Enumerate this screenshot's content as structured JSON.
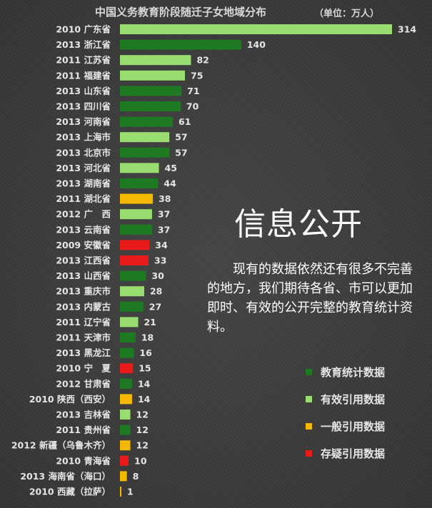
{
  "header": {
    "title": "中国义务教育阶段随迁子女地域分布",
    "unit": "（单位：万人）"
  },
  "slide": {
    "heading": "信息公开",
    "body": "现有的数据依然还有很多不完善的地方，我们期待各省、市可以更加即时、有效的公开完整的教育统计资料。"
  },
  "colors": {
    "edu_stats": "#1e7a22",
    "valid_cite": "#99dd70",
    "general_cite": "#f5b800",
    "doubtful_cite": "#e81a1a"
  },
  "legend": [
    {
      "key": "edu_stats",
      "label": "教育统计数据",
      "color": "#1e7a22"
    },
    {
      "key": "valid_cite",
      "label": "有效引用数据",
      "color": "#99dd70"
    },
    {
      "key": "general_cite",
      "label": "一般引用数据",
      "color": "#f5b800"
    },
    {
      "key": "doubtful_cite",
      "label": "存疑引用数据",
      "color": "#e81a1a"
    }
  ],
  "chart_data": {
    "type": "bar",
    "orientation": "horizontal",
    "title": "中国义务教育阶段随迁子女地域分布",
    "unit": "（单位：万人）",
    "categories": [
      "2010 广东省",
      "2013 浙江省",
      "2011 江苏省",
      "2011 福建省",
      "2013 山东省",
      "2013 四川省",
      "2013 河南省",
      "2013 上海市",
      "2013 北京市",
      "2013 河北省",
      "2013 湖南省",
      "2011 湖北省",
      "2012 广　西",
      "2013 云南省",
      "2009 安徽省",
      "2013 江西省",
      "2013 山西省",
      "2013 重庆市",
      "2013 内蒙古",
      "2011 辽宁省",
      "2011 天津市",
      "2013 黑龙江",
      "2010 宁　夏",
      "2012 甘肃省",
      "2010 陕西（西安）",
      "2013 吉林省",
      "2011 贵州省",
      "2012 新疆（乌鲁木齐）",
      "2010 青海省",
      "2013 海南省（海口）",
      "2010 西藏（拉萨）"
    ],
    "values": [
      314,
      140,
      82,
      75,
      71,
      70,
      61,
      57,
      57,
      45,
      44,
      38,
      37,
      37,
      34,
      33,
      30,
      28,
      27,
      21,
      18,
      16,
      15,
      14,
      14,
      12,
      12,
      12,
      10,
      8,
      1
    ],
    "source_type": [
      "valid_cite",
      "edu_stats",
      "valid_cite",
      "valid_cite",
      "edu_stats",
      "edu_stats",
      "edu_stats",
      "valid_cite",
      "edu_stats",
      "valid_cite",
      "edu_stats",
      "general_cite",
      "valid_cite",
      "edu_stats",
      "doubtful_cite",
      "doubtful_cite",
      "edu_stats",
      "valid_cite",
      "edu_stats",
      "valid_cite",
      "edu_stats",
      "edu_stats",
      "doubtful_cite",
      "edu_stats",
      "general_cite",
      "valid_cite",
      "edu_stats",
      "general_cite",
      "doubtful_cite",
      "general_cite",
      "general_cite"
    ],
    "xlim": [
      0,
      314
    ],
    "grid": false,
    "legend_position": "bottom-right"
  }
}
